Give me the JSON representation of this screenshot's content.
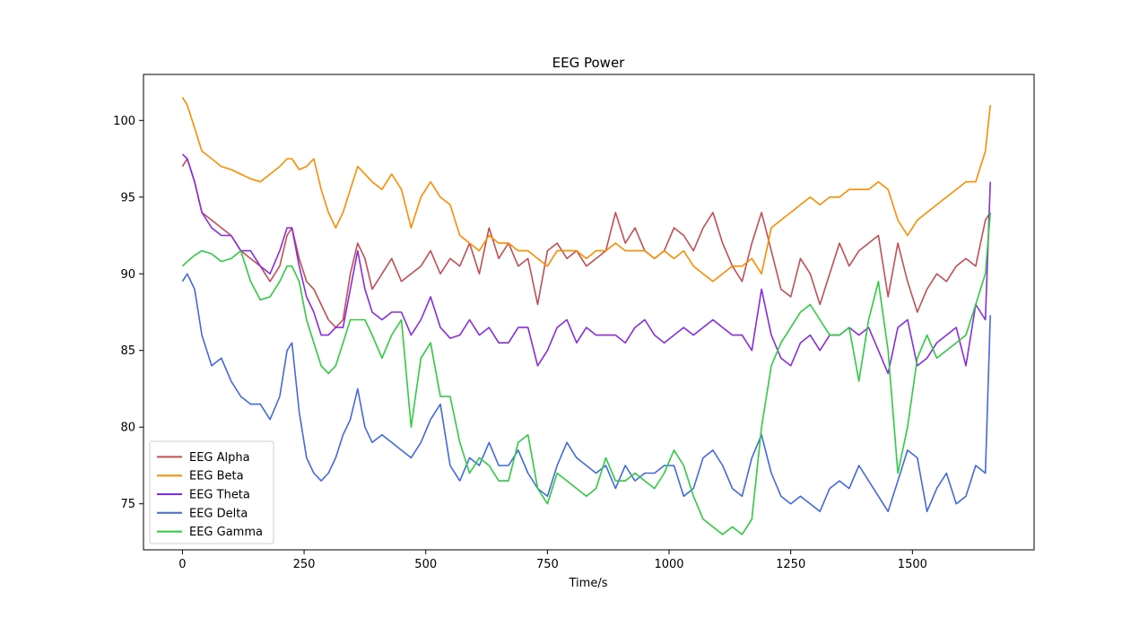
{
  "chart_data": {
    "type": "line",
    "title": "EEG Power",
    "xlabel": "Time/s",
    "ylabel": "",
    "xlim": [
      -80,
      1750
    ],
    "ylim": [
      72,
      103
    ],
    "x_ticks": [
      0,
      250,
      500,
      750,
      1000,
      1250,
      1500
    ],
    "y_ticks": [
      75,
      80,
      85,
      90,
      95,
      100
    ],
    "legend_position": "lower-left",
    "grid": false,
    "series": [
      {
        "name": "EEG Alpha",
        "color": "#c44e52",
        "x": [
          0,
          10,
          25,
          40,
          60,
          80,
          100,
          120,
          140,
          160,
          180,
          200,
          215,
          225,
          240,
          255,
          270,
          285,
          300,
          315,
          330,
          345,
          360,
          375,
          390,
          410,
          430,
          450,
          470,
          490,
          510,
          530,
          550,
          570,
          590,
          610,
          630,
          650,
          670,
          690,
          710,
          730,
          750,
          770,
          790,
          810,
          830,
          850,
          870,
          890,
          910,
          930,
          950,
          970,
          990,
          1010,
          1030,
          1050,
          1070,
          1090,
          1110,
          1130,
          1150,
          1170,
          1190,
          1210,
          1230,
          1250,
          1270,
          1290,
          1310,
          1330,
          1350,
          1370,
          1390,
          1410,
          1430,
          1450,
          1470,
          1490,
          1510,
          1530,
          1550,
          1570,
          1590,
          1610,
          1630,
          1650,
          1660
        ],
        "y": [
          97,
          97.5,
          96,
          94,
          93.5,
          93,
          92.5,
          91.5,
          91,
          90.5,
          89.5,
          90.5,
          92.5,
          93,
          91,
          89.5,
          89,
          88,
          87,
          86.5,
          87,
          90,
          92,
          91,
          89,
          90,
          91,
          89.5,
          90,
          90.5,
          91.5,
          90,
          91,
          90.5,
          92,
          90,
          93,
          91,
          92,
          90.5,
          91,
          88,
          91.5,
          92,
          91,
          91.5,
          90.5,
          91,
          91.5,
          94,
          92,
          93,
          91.5,
          91,
          91.5,
          93,
          92.5,
          91.5,
          93,
          94,
          92,
          90.5,
          89.5,
          92,
          94,
          91.5,
          89,
          88.5,
          91,
          90,
          88,
          90,
          92,
          90.5,
          91.5,
          92,
          92.5,
          88.5,
          92,
          89.5,
          87.5,
          89,
          90,
          89.5,
          90.5,
          91,
          90.5,
          93.5,
          94
        ]
      },
      {
        "name": "EEG Beta",
        "color": "#ff8c00",
        "x": [
          0,
          10,
          25,
          40,
          60,
          80,
          100,
          120,
          140,
          160,
          180,
          200,
          215,
          225,
          240,
          255,
          270,
          285,
          300,
          315,
          330,
          345,
          360,
          375,
          390,
          410,
          430,
          450,
          470,
          490,
          510,
          530,
          550,
          570,
          590,
          610,
          630,
          650,
          670,
          690,
          710,
          730,
          750,
          770,
          790,
          810,
          830,
          850,
          870,
          890,
          910,
          930,
          950,
          970,
          990,
          1010,
          1030,
          1050,
          1070,
          1090,
          1110,
          1130,
          1150,
          1170,
          1190,
          1210,
          1230,
          1250,
          1270,
          1290,
          1310,
          1330,
          1350,
          1370,
          1390,
          1410,
          1430,
          1450,
          1470,
          1490,
          1510,
          1530,
          1550,
          1570,
          1590,
          1610,
          1630,
          1650,
          1660
        ],
        "y": [
          101.5,
          101,
          99.5,
          98,
          97.5,
          97,
          96.8,
          96.5,
          96.2,
          96,
          96.5,
          97,
          97.5,
          97.5,
          96.8,
          97,
          97.5,
          95.5,
          94,
          93,
          94,
          95.5,
          97,
          96.5,
          96,
          95.5,
          96.5,
          95.5,
          93,
          95,
          96,
          95,
          94.5,
          92.5,
          92,
          91.5,
          92.5,
          92,
          92,
          91.5,
          91.5,
          91,
          90.5,
          91.5,
          91.5,
          91.5,
          91,
          91.5,
          91.5,
          92,
          91.5,
          91.5,
          91.5,
          91,
          91.5,
          91,
          91.5,
          90.5,
          90,
          89.5,
          90,
          90.5,
          90.5,
          91,
          90,
          93,
          93.5,
          94,
          94.5,
          95,
          94.5,
          95,
          95,
          95.5,
          95.5,
          95.5,
          96,
          95.5,
          93.5,
          92.5,
          93.5,
          94,
          94.5,
          95,
          95.5,
          96,
          96,
          98,
          101
        ]
      },
      {
        "name": "EEG Theta",
        "color": "#8a2be2",
        "x": [
          0,
          10,
          25,
          40,
          60,
          80,
          100,
          120,
          140,
          160,
          180,
          200,
          215,
          225,
          240,
          255,
          270,
          285,
          300,
          315,
          330,
          345,
          360,
          375,
          390,
          410,
          430,
          450,
          470,
          490,
          510,
          530,
          550,
          570,
          590,
          610,
          630,
          650,
          670,
          690,
          710,
          730,
          750,
          770,
          790,
          810,
          830,
          850,
          870,
          890,
          910,
          930,
          950,
          970,
          990,
          1010,
          1030,
          1050,
          1070,
          1090,
          1110,
          1130,
          1150,
          1170,
          1190,
          1210,
          1230,
          1250,
          1270,
          1290,
          1310,
          1330,
          1350,
          1370,
          1390,
          1410,
          1430,
          1450,
          1470,
          1490,
          1510,
          1530,
          1550,
          1570,
          1590,
          1610,
          1630,
          1650,
          1660
        ],
        "y": [
          97.8,
          97.5,
          96,
          94,
          93,
          92.5,
          92.5,
          91.5,
          91.5,
          90.5,
          90,
          91.5,
          93,
          93,
          90.5,
          88.5,
          87.5,
          86,
          86,
          86.5,
          86.5,
          89,
          91.5,
          89,
          87.5,
          87,
          87.5,
          87.5,
          86,
          87,
          88.5,
          86.5,
          85.8,
          86,
          87,
          86,
          86.5,
          85.5,
          85.5,
          86.5,
          86.5,
          84,
          85,
          86.5,
          87,
          85.5,
          86.5,
          86,
          86,
          86,
          85.5,
          86.5,
          87,
          86,
          85.5,
          86,
          86.5,
          86,
          86.5,
          87,
          86.5,
          86,
          86,
          85,
          89,
          86,
          84.5,
          84,
          85.5,
          86,
          85,
          86,
          86,
          86.5,
          86,
          86.5,
          85,
          83.5,
          86.5,
          87,
          84,
          84.5,
          85.5,
          86,
          86.5,
          84,
          88,
          87,
          96
        ]
      },
      {
        "name": "EEG Delta",
        "color": "#4169e1",
        "x": [
          0,
          10,
          25,
          40,
          60,
          80,
          100,
          120,
          140,
          160,
          180,
          200,
          215,
          225,
          240,
          255,
          270,
          285,
          300,
          315,
          330,
          345,
          360,
          375,
          390,
          410,
          430,
          450,
          470,
          490,
          510,
          530,
          550,
          570,
          590,
          610,
          630,
          650,
          670,
          690,
          710,
          730,
          750,
          770,
          790,
          810,
          830,
          850,
          870,
          890,
          910,
          930,
          950,
          970,
          990,
          1010,
          1030,
          1050,
          1070,
          1090,
          1110,
          1130,
          1150,
          1170,
          1190,
          1210,
          1230,
          1250,
          1270,
          1290,
          1310,
          1330,
          1350,
          1370,
          1390,
          1410,
          1430,
          1450,
          1470,
          1490,
          1510,
          1530,
          1550,
          1570,
          1590,
          1610,
          1630,
          1650,
          1660
        ],
        "y": [
          89.5,
          90,
          89,
          86,
          84,
          84.5,
          83,
          82,
          81.5,
          81.5,
          80.5,
          82,
          85,
          85.5,
          81,
          78,
          77,
          76.5,
          77,
          78,
          79.5,
          80.5,
          82.5,
          80,
          79,
          79.5,
          79,
          78.5,
          78,
          79,
          80.5,
          81.5,
          77.5,
          76.5,
          78,
          77.5,
          79,
          77.5,
          77.5,
          78.5,
          77,
          76,
          75.5,
          77.5,
          79,
          78,
          77.5,
          77,
          77.5,
          76,
          77.5,
          76.5,
          77,
          77,
          77.5,
          77.5,
          75.5,
          76,
          78,
          78.5,
          77.5,
          76,
          75.5,
          78,
          79.5,
          77,
          75.5,
          75,
          75.5,
          75,
          74.5,
          76,
          76.5,
          76,
          77.5,
          76.5,
          75.5,
          74.5,
          76.5,
          78.5,
          78,
          74.5,
          76,
          77,
          75,
          75.5,
          77.5,
          77,
          87.3
        ]
      },
      {
        "name": "EEG Gamma",
        "color": "#2ecc40",
        "x": [
          0,
          10,
          25,
          40,
          60,
          80,
          100,
          120,
          140,
          160,
          180,
          200,
          215,
          225,
          240,
          255,
          270,
          285,
          300,
          315,
          330,
          345,
          360,
          375,
          390,
          410,
          430,
          450,
          470,
          490,
          510,
          530,
          550,
          570,
          590,
          610,
          630,
          650,
          670,
          690,
          710,
          730,
          750,
          770,
          790,
          810,
          830,
          850,
          870,
          890,
          910,
          930,
          950,
          970,
          990,
          1010,
          1030,
          1050,
          1070,
          1090,
          1110,
          1130,
          1150,
          1170,
          1190,
          1210,
          1230,
          1250,
          1270,
          1290,
          1310,
          1330,
          1350,
          1370,
          1390,
          1410,
          1430,
          1450,
          1470,
          1490,
          1510,
          1530,
          1550,
          1570,
          1590,
          1610,
          1630,
          1650,
          1660
        ],
        "y": [
          90.5,
          90.8,
          91.2,
          91.5,
          91.3,
          90.8,
          91,
          91.5,
          89.5,
          88.3,
          88.5,
          89.5,
          90.5,
          90.5,
          89.5,
          87,
          85.5,
          84,
          83.5,
          84,
          85.5,
          87,
          87,
          87,
          86,
          84.5,
          86,
          87,
          80,
          84.5,
          85.5,
          82,
          82,
          79,
          77,
          78,
          77.5,
          76.5,
          76.5,
          79,
          79.5,
          76,
          75,
          77,
          76.5,
          76,
          75.5,
          76,
          78,
          76.5,
          76.5,
          77,
          76.5,
          76,
          77,
          78.5,
          77.5,
          75.5,
          74,
          73.5,
          73,
          73.5,
          73,
          74,
          80,
          84,
          85.5,
          86.5,
          87.5,
          88,
          87,
          86,
          86,
          86.5,
          83,
          87,
          89.5,
          85,
          77,
          80,
          84.5,
          86,
          84.5,
          85,
          85.5,
          86,
          88,
          90,
          94
        ]
      }
    ]
  }
}
